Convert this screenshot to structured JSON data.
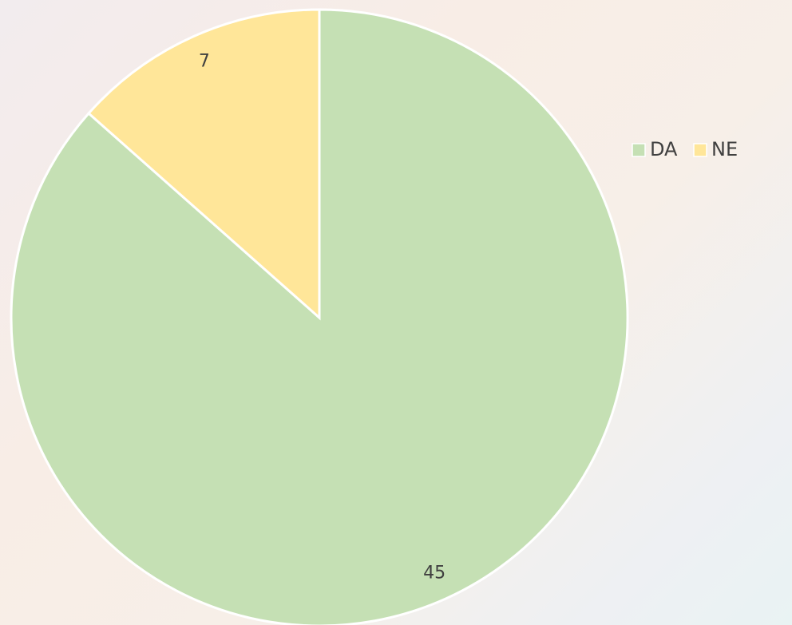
{
  "chart_data": {
    "type": "pie",
    "categories": [
      "DA",
      "NE"
    ],
    "values": [
      45,
      7
    ],
    "colors": [
      "#c5e0b4",
      "#ffe699"
    ],
    "legend": "right"
  }
}
